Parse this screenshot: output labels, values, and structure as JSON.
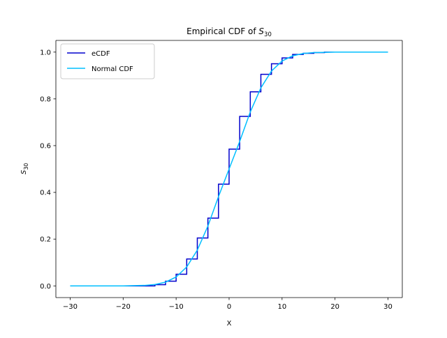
{
  "chart_data": {
    "type": "line",
    "title_main": "Empirical CDF of ",
    "title_var": "S",
    "title_sub": "30",
    "xlabel": "X",
    "ylabel_var": "S",
    "ylabel_sub": "30",
    "xlim": [
      -32.7,
      32.7
    ],
    "ylim": [
      -0.05,
      1.05
    ],
    "x_ticks": [
      -30,
      -20,
      -10,
      0,
      10,
      20,
      30
    ],
    "x_tick_labels": [
      "−30",
      "−20",
      "−10",
      "0",
      "10",
      "20",
      "30"
    ],
    "y_ticks": [
      0.0,
      0.2,
      0.4,
      0.6,
      0.8,
      1.0
    ],
    "y_tick_labels": [
      "0.0",
      "0.2",
      "0.4",
      "0.6",
      "0.8",
      "1.0"
    ],
    "grid": false,
    "legend_position": "top-left",
    "series": [
      {
        "name": "eCDF",
        "kind": "step",
        "color": "#0000cd",
        "x": [
          -30,
          -14,
          -12,
          -10,
          -8,
          -6,
          -4,
          -2,
          0,
          2,
          4,
          6,
          8,
          10,
          12,
          14,
          16,
          18,
          30
        ],
        "y": [
          0.0,
          0.005,
          0.02,
          0.05,
          0.115,
          0.205,
          0.29,
          0.435,
          0.585,
          0.725,
          0.83,
          0.905,
          0.95,
          0.975,
          0.99,
          0.995,
          0.998,
          1.0,
          1.0
        ]
      },
      {
        "name": "Normal CDF",
        "kind": "line",
        "color": "#00bfff",
        "x": [
          -30,
          -20,
          -16,
          -14,
          -12,
          -10,
          -8,
          -6,
          -4,
          -2,
          0,
          2,
          4,
          6,
          8,
          10,
          12,
          14,
          16,
          20,
          30
        ],
        "y": [
          0.0,
          0.0,
          0.002,
          0.006,
          0.016,
          0.038,
          0.081,
          0.153,
          0.256,
          0.382,
          0.5,
          0.618,
          0.744,
          0.847,
          0.919,
          0.962,
          0.984,
          0.994,
          0.998,
          1.0,
          1.0
        ]
      }
    ]
  }
}
